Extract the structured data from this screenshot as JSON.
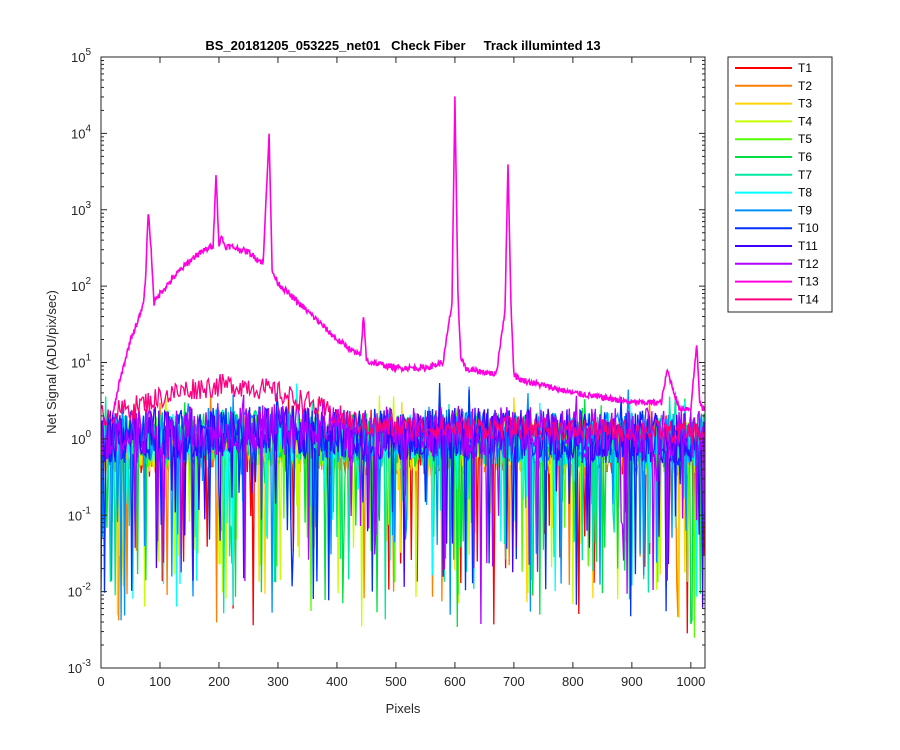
{
  "chart_data": {
    "type": "line",
    "title": "BS_20181205_053225_net01   Check Fiber     Track illuminted 13",
    "xlabel": "Pixels",
    "ylabel": "Net Signal (ADU/pix/sec)",
    "xlim": [
      0,
      1024
    ],
    "ylim": [
      0.001,
      100000
    ],
    "yscale": "log",
    "grid": false,
    "legend_position": "outside-top-right",
    "x_ticks": [
      "0",
      "100",
      "200",
      "300",
      "400",
      "500",
      "600",
      "700",
      "800",
      "900",
      "1000"
    ],
    "y_ticks": [
      {
        "base": "10",
        "exp": "-3"
      },
      {
        "base": "10",
        "exp": "-2"
      },
      {
        "base": "10",
        "exp": "-1"
      },
      {
        "base": "10",
        "exp": "0"
      },
      {
        "base": "10",
        "exp": "1"
      },
      {
        "base": "10",
        "exp": "2"
      },
      {
        "base": "10",
        "exp": "3"
      },
      {
        "base": "10",
        "exp": "4"
      },
      {
        "base": "10",
        "exp": "5"
      }
    ],
    "series": [
      {
        "name": "T1",
        "color": "#ff0000"
      },
      {
        "name": "T2",
        "color": "#ff7f00"
      },
      {
        "name": "T3",
        "color": "#ffd400"
      },
      {
        "name": "T4",
        "color": "#c8ff00"
      },
      {
        "name": "T5",
        "color": "#55ff00"
      },
      {
        "name": "T6",
        "color": "#00e040"
      },
      {
        "name": "T7",
        "color": "#00e8a0"
      },
      {
        "name": "T8",
        "color": "#00ffff"
      },
      {
        "name": "T9",
        "color": "#0090ff"
      },
      {
        "name": "T10",
        "color": "#0030ff"
      },
      {
        "name": "T11",
        "color": "#4000ff"
      },
      {
        "name": "T12",
        "color": "#b000ff"
      },
      {
        "name": "T13",
        "color": "#ff00e0"
      },
      {
        "name": "T14",
        "color": "#ff0080"
      }
    ],
    "illuminated_track": "T13",
    "illuminated_profile": {
      "x": [
        20,
        30,
        50,
        70,
        75,
        80,
        85,
        90,
        100,
        130,
        160,
        190,
        195,
        200,
        205,
        210,
        220,
        250,
        275,
        280,
        285,
        290,
        295,
        300,
        330,
        360,
        400,
        440,
        445,
        450,
        455,
        460,
        500,
        550,
        580,
        595,
        600,
        605,
        610,
        620,
        650,
        670,
        685,
        690,
        695,
        700,
        710,
        750,
        800,
        850,
        900,
        950,
        960,
        980,
        1000,
        1010,
        1015,
        1020,
        1024
      ],
      "y": [
        2,
        5,
        20,
        50,
        100,
        950,
        300,
        60,
        80,
        150,
        250,
        340,
        3000,
        340,
        450,
        330,
        330,
        280,
        200,
        1500,
        10000,
        160,
        130,
        110,
        65,
        40,
        20,
        12,
        40,
        11,
        10,
        10,
        8.5,
        8.5,
        10,
        60,
        28000,
        80,
        12,
        8,
        7.5,
        7,
        50,
        4000,
        60,
        7,
        6,
        5,
        4,
        3.5,
        3,
        3,
        8,
        2.5,
        2.5,
        18,
        3,
        2.5,
        2.5
      ]
    },
    "noise_floor": {
      "x": [
        0,
        100,
        150,
        200,
        250,
        300,
        350,
        400,
        500,
        600,
        700,
        800,
        900,
        1000,
        1024
      ],
      "y": [
        0.8,
        0.9,
        0.9,
        1.0,
        1.0,
        1.0,
        0.95,
        0.9,
        0.9,
        0.9,
        0.9,
        0.85,
        0.85,
        0.8,
        0.8
      ]
    },
    "T14_baseline": {
      "x": [
        0,
        50,
        100,
        150,
        200,
        250,
        300,
        350,
        400,
        450,
        500,
        600,
        700,
        800,
        900,
        1000,
        1024
      ],
      "y": [
        2.0,
        2.5,
        3.5,
        4.5,
        5.0,
        5.0,
        4.0,
        3.0,
        2.0,
        1.5,
        1.4,
        1.4,
        1.4,
        1.3,
        1.3,
        1.2,
        1.2
      ]
    }
  }
}
